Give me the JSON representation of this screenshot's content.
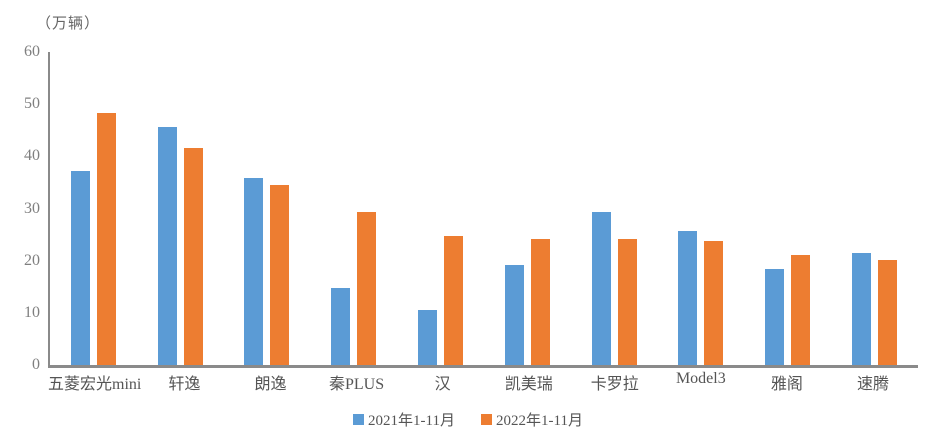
{
  "chart_data": {
    "type": "bar",
    "title": "",
    "unit_label": "（万辆）",
    "xlabel": "",
    "ylabel": "万辆",
    "categories": [
      "五菱宏光mini",
      "轩逸",
      "朗逸",
      "秦PLUS",
      "汉",
      "凯美瑞",
      "卡罗拉",
      "Model3",
      "雅阁",
      "速腾"
    ],
    "series": [
      {
        "name": "2021年1-11月",
        "color": "#5B9BD5",
        "values": [
          37.2,
          45.6,
          35.9,
          14.7,
          10.5,
          19.2,
          29.4,
          25.6,
          18.4,
          21.4
        ]
      },
      {
        "name": "2022年1-11月",
        "color": "#ED7D31",
        "values": [
          48.3,
          41.6,
          34.5,
          29.4,
          24.7,
          24.2,
          24.1,
          23.7,
          21.1,
          20.2
        ]
      }
    ],
    "ylim": [
      0,
      60
    ],
    "yticks": [
      0,
      10,
      20,
      30,
      40,
      50,
      60
    ],
    "grid": false,
    "legend_position": "bottom",
    "colors": {
      "axis": "#8a8a8a",
      "tick_text": "#7f7f7f",
      "category_text": "#555555",
      "series_2021": "#5B9BD5",
      "series_2022": "#ED7D31",
      "background": "#ffffff"
    }
  }
}
